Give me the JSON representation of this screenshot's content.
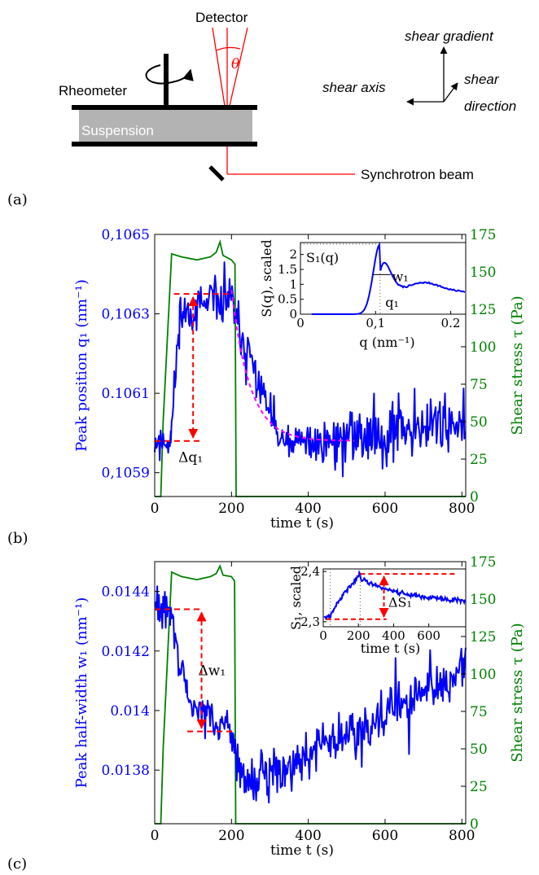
{
  "schematic": {
    "panel_label": "(a)",
    "detector": "Detector",
    "theta": "θ",
    "rheometer": "Rheometer",
    "suspension": "Suspension",
    "beam": "Synchrotron beam",
    "shear_gradient": "shear gradient",
    "shear_axis": "shear axis",
    "shear_dir_1": "shear",
    "shear_dir_2": "direction"
  },
  "chart_data": [
    {
      "id": "b",
      "panel_label": "(b)",
      "type": "line",
      "xlabel": "time t (s)",
      "ylabel_left": "Peak position q₁ (nm⁻¹)",
      "ylabel_right": "Shear stress τ (Pa)",
      "xlim": [
        0,
        810
      ],
      "ylim_left": [
        0.10584,
        0.1065
      ],
      "ylim_right": [
        0,
        175
      ],
      "x_ticks": [
        "0",
        "200",
        "400",
        "600",
        "800"
      ],
      "y_ticks_left": [
        "0,1059",
        "0.1061",
        "0,1063",
        "0,1065"
      ],
      "y_ticks_right": [
        "0",
        "25",
        "50",
        "75",
        "100",
        "125",
        "150",
        "175"
      ],
      "annotation": "Δq₁",
      "series_left": {
        "color": "#0000ff",
        "segments": [
          {
            "t0": 0,
            "t1": 42,
            "v0": 0.10598,
            "v1": 0.10598,
            "noise": 2.5e-05
          },
          {
            "t0": 42,
            "t1": 65,
            "v0": 0.10598,
            "v1": 0.1063,
            "noise": 3e-05
          },
          {
            "t0": 65,
            "t1": 205,
            "v0": 0.1063,
            "v1": 0.10634,
            "noise": 3e-05
          },
          {
            "t0": 205,
            "t1": 330,
            "v0": 0.1063,
            "v1": 0.10597,
            "noise": 3e-05
          },
          {
            "t0": 330,
            "t1": 470,
            "v0": 0.10597,
            "v1": 0.10598,
            "noise": 3e-05
          },
          {
            "t0": 470,
            "t1": 810,
            "v0": 0.10598,
            "v1": 0.10604,
            "noise": 4e-05
          }
        ]
      },
      "series_right": {
        "color": "#008000",
        "points": [
          [
            0,
            0
          ],
          [
            16,
            0
          ],
          [
            22,
            50
          ],
          [
            44,
            162
          ],
          [
            70,
            160
          ],
          [
            110,
            158
          ],
          [
            145,
            160
          ],
          [
            160,
            163
          ],
          [
            170,
            170
          ],
          [
            178,
            161
          ],
          [
            200,
            158
          ],
          [
            209,
            155
          ],
          [
            212,
            0
          ],
          [
            810,
            0
          ]
        ]
      },
      "fit_curve": {
        "color": "#ff00ff",
        "t_start": 200,
        "t_end": 520,
        "tau": 48,
        "v_start": 0.10636,
        "v_end": 0.10598
      },
      "annot_lines": {
        "color": "#ff0000",
        "hi_level": 0.10635,
        "lo_level": 0.10598,
        "hi_t": [
          50,
          200
        ],
        "lo_t": [
          0,
          125
        ],
        "arrow_t": 100
      },
      "inset": {
        "type": "line",
        "xlabel": "q (nm⁻¹)",
        "ylabel": "S(q), scaled",
        "xlim": [
          0,
          0.22
        ],
        "ylim": [
          0,
          2.4
        ],
        "x_ticks": [
          "0",
          "0,1",
          "0.2"
        ],
        "y_ticks": [
          "0",
          "0.5",
          "1",
          "1.5",
          "2"
        ],
        "labels": [
          "S₁(q)",
          "w₁",
          "q₁"
        ],
        "peak_q": 0.106,
        "peak_s": 2.35,
        "peak_sigma_left": 0.009,
        "peak_sigma_right": 0.012,
        "bump_q": 0.165,
        "bump_s": 0.3,
        "bump_sigma": 0.02,
        "tail_s": 0.95
      }
    },
    {
      "id": "c",
      "panel_label": "(c)",
      "type": "line",
      "xlabel": "time t (s)",
      "ylabel_left": "Peak half-width w₁ (nm⁻¹)",
      "ylabel_right": "Shear stress τ (Pa)",
      "xlim": [
        0,
        810
      ],
      "ylim_left": [
        0.01362,
        0.0145
      ],
      "ylim_right": [
        0,
        175
      ],
      "x_ticks": [
        "0",
        "200",
        "400",
        "600",
        "800"
      ],
      "y_ticks_left": [
        "0.0138",
        "0.014",
        "0.0142",
        "0.0144"
      ],
      "y_ticks_right": [
        "0",
        "25",
        "50",
        "75",
        "100",
        "125",
        "150",
        "175"
      ],
      "annotation": "Δw₁",
      "series_left": {
        "color": "#0000ff",
        "segments": [
          {
            "t0": 0,
            "t1": 40,
            "v0": 0.01434,
            "v1": 0.01434,
            "noise": 3.5e-05
          },
          {
            "t0": 40,
            "t1": 85,
            "v0": 0.01434,
            "v1": 0.01403,
            "noise": 3.5e-05
          },
          {
            "t0": 85,
            "t1": 205,
            "v0": 0.01403,
            "v1": 0.01393,
            "noise": 3e-05
          },
          {
            "t0": 205,
            "t1": 240,
            "v0": 0.01385,
            "v1": 0.01375,
            "noise": 3.5e-05
          },
          {
            "t0": 240,
            "t1": 810,
            "v0": 0.01375,
            "v1": 0.01413,
            "noise": 4.5e-05
          }
        ]
      },
      "series_right": {
        "color": "#008000",
        "points": [
          [
            0,
            0
          ],
          [
            16,
            0
          ],
          [
            22,
            50
          ],
          [
            44,
            168
          ],
          [
            70,
            165
          ],
          [
            110,
            163
          ],
          [
            145,
            165
          ],
          [
            160,
            167
          ],
          [
            170,
            172
          ],
          [
            178,
            166
          ],
          [
            200,
            165
          ],
          [
            208,
            162
          ],
          [
            211,
            0
          ],
          [
            810,
            0
          ]
        ]
      },
      "annot_lines": {
        "color": "#ff0000",
        "hi_level": 0.01434,
        "lo_level": 0.01393,
        "hi_t": [
          0,
          125
        ],
        "lo_t": [
          85,
          205
        ],
        "arrow_t": 122
      },
      "inset": {
        "type": "line",
        "xlabel": "time t (s)",
        "ylabel": "S₁, scaled",
        "xlim": [
          0,
          810
        ],
        "ylim": [
          2.29,
          2.405
        ],
        "x_ticks": [
          "0",
          "200",
          "400",
          "600"
        ],
        "y_ticks": [
          "2,3",
          "2,4"
        ],
        "labels": [
          "ΔS₁"
        ],
        "hi_level": 2.395,
        "lo_level": 2.305,
        "vlines": [
          40,
          210
        ]
      }
    }
  ]
}
